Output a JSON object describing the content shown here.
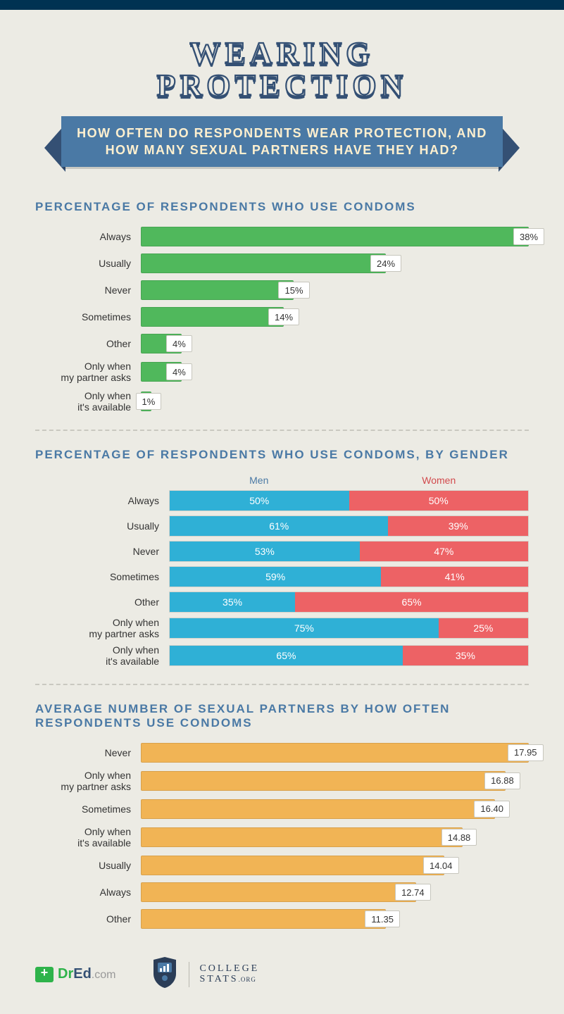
{
  "colors": {
    "background": "#ecebe4",
    "topbar": "#003252",
    "title_stroke": "#345074",
    "ribbon_bg": "#4a79a5",
    "ribbon_text": "#fff0cf",
    "section_title": "#4a79a5",
    "bar_green": "#50b85c",
    "bar_men": "#2fb0d6",
    "bar_women": "#ed6265",
    "bar_orange": "#f1b455",
    "legend_men": "#4a79a5",
    "legend_women": "#d24a4d",
    "badge_bg": "#ffffff",
    "badge_border": "#c7c6bd"
  },
  "title_line1": "WEARING",
  "title_line2": "PROTECTION",
  "subtitle_line1": "HOW OFTEN DO RESPONDENTS WEAR PROTECTION, AND",
  "subtitle_line2": "HOW MANY SEXUAL PARTNERS HAVE THEY HAD?",
  "chart1": {
    "title": "PERCENTAGE OF RESPONDENTS WHO USE CONDOMS",
    "type": "bar",
    "max": 38,
    "bar_color": "#50b85c",
    "rows": [
      {
        "label": "Always",
        "value": 38,
        "display": "38%"
      },
      {
        "label": "Usually",
        "value": 24,
        "display": "24%"
      },
      {
        "label": "Never",
        "value": 15,
        "display": "15%"
      },
      {
        "label": "Sometimes",
        "value": 14,
        "display": "14%"
      },
      {
        "label": "Other",
        "value": 4,
        "display": "4%"
      },
      {
        "label": "Only when\nmy partner asks",
        "value": 4,
        "display": "4%"
      },
      {
        "label": "Only when\nit's available",
        "value": 1,
        "display": "1%"
      }
    ]
  },
  "chart2": {
    "title": "PERCENTAGE OF RESPONDENTS WHO USE CONDOMS, BY GENDER",
    "type": "stacked-bar",
    "legend_men": "Men",
    "legend_women": "Women",
    "men_color": "#2fb0d6",
    "women_color": "#ed6265",
    "rows": [
      {
        "label": "Always",
        "men": 50,
        "women": 50
      },
      {
        "label": "Usually",
        "men": 61,
        "women": 39
      },
      {
        "label": "Never",
        "men": 53,
        "women": 47
      },
      {
        "label": "Sometimes",
        "men": 59,
        "women": 41
      },
      {
        "label": "Other",
        "men": 35,
        "women": 65
      },
      {
        "label": "Only when\nmy partner asks",
        "men": 75,
        "women": 25
      },
      {
        "label": "Only when\nit's available",
        "men": 65,
        "women": 35
      }
    ]
  },
  "chart3": {
    "title": "AVERAGE NUMBER OF SEXUAL PARTNERS BY HOW OFTEN\nRESPONDENTS USE CONDOMS",
    "type": "bar",
    "max": 17.95,
    "bar_color": "#f1b455",
    "rows": [
      {
        "label": "Never",
        "value": 17.95,
        "display": "17.95"
      },
      {
        "label": "Only when\nmy partner asks",
        "value": 16.88,
        "display": "16.88"
      },
      {
        "label": "Sometimes",
        "value": 16.4,
        "display": "16.40"
      },
      {
        "label": "Only when\nit's available",
        "value": 14.88,
        "display": "14.88"
      },
      {
        "label": "Usually",
        "value": 14.04,
        "display": "14.04"
      },
      {
        "label": "Always",
        "value": 12.74,
        "display": "12.74"
      },
      {
        "label": "Other",
        "value": 11.35,
        "display": "11.35"
      }
    ]
  },
  "footer": {
    "dred_dr": "Dr",
    "dred_ed": "Ed",
    "dred_dom": ".com",
    "cs_line1": "COLLEGE",
    "cs_line2": "STATS",
    "cs_org": ".ORG"
  }
}
